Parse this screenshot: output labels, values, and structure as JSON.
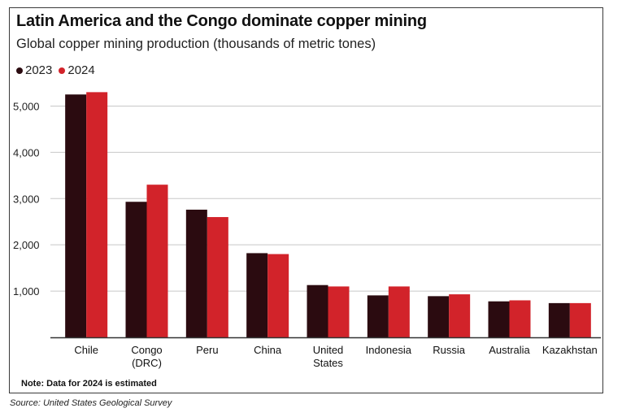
{
  "title": "Latin America and the Congo dominate copper mining",
  "subtitle": "Global copper mining production (thousands of metric tones)",
  "note": "Note: Data for 2024 is estimated",
  "source": "Source: United States Geological Survey",
  "colors": {
    "series_2023": "#2b0b10",
    "series_2024": "#d2232a",
    "grid": "#c8c8c8",
    "axis": "#333333"
  },
  "chart_data": {
    "type": "bar",
    "title": "Latin America and the Congo dominate copper mining",
    "subtitle": "Global copper mining production (thousands of metric tones)",
    "xlabel": "",
    "ylabel": "",
    "ylim": [
      0,
      5500
    ],
    "yticks": [
      1000,
      2000,
      3000,
      4000,
      5000
    ],
    "ytick_labels": [
      "1,000",
      "2,000",
      "3,000",
      "4,000",
      "5,000"
    ],
    "grid": true,
    "legend_position": "top-left",
    "categories": [
      [
        "Chile"
      ],
      [
        "Congo",
        "(DRC)"
      ],
      [
        "Peru"
      ],
      [
        "China"
      ],
      [
        "United",
        "States"
      ],
      [
        "Indonesia"
      ],
      [
        "Russia"
      ],
      [
        "Australia"
      ],
      [
        "Kazakhstan"
      ]
    ],
    "series": [
      {
        "name": "2023",
        "values": [
          5250,
          2930,
          2760,
          1820,
          1130,
          907,
          890,
          778,
          740
        ]
      },
      {
        "name": "2024",
        "values": [
          5300,
          3300,
          2600,
          1800,
          1100,
          1100,
          930,
          800,
          740
        ]
      }
    ]
  }
}
